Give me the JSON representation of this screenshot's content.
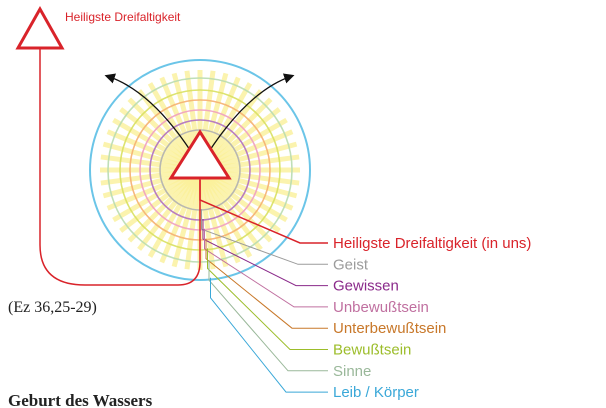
{
  "top_label": "Heiligste Dreifaltigkeit",
  "layers": [
    {
      "label": "Heiligste Dreifaltigkeit (in uns)"
    },
    {
      "label": "Geist"
    },
    {
      "label": "Gewissen"
    },
    {
      "label": "Unbewußtsein"
    },
    {
      "label": "Unterbewußtsein"
    },
    {
      "label": "Bewußtsein"
    },
    {
      "label": "Sinne"
    },
    {
      "label": "Leib / Körper"
    }
  ],
  "reference": "(Ez 36,25-29)",
  "heading": "Geburt des Wassers"
}
